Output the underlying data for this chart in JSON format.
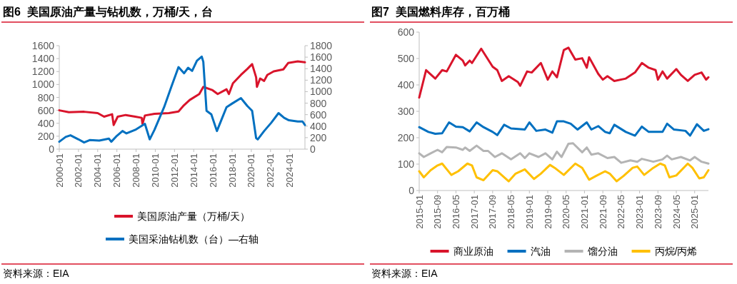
{
  "chart_data": [
    {
      "type": "line",
      "title": "图6  美国原油产量与钻机数，万桶/天，台",
      "annotations": [
        "资料来源：EIA"
      ],
      "legend": "bottom",
      "xlim": [
        "2000-01",
        "2025-08"
      ],
      "xticks": [
        "2000-01",
        "2002-01",
        "2004-01",
        "2006-01",
        "2008-01",
        "2010-01",
        "2012-01",
        "2014-01",
        "2016-01",
        "2018-01",
        "2020-01",
        "2022-01",
        "2024-01"
      ],
      "ylim": [
        0,
        1600
      ],
      "yticks": [
        0,
        200,
        400,
        600,
        800,
        1000,
        1200,
        1400,
        1600
      ],
      "y2lim": [
        0,
        1800
      ],
      "y2ticks": [
        0,
        200,
        400,
        600,
        800,
        1000,
        1200,
        1400,
        1600,
        1800
      ],
      "series": [
        {
          "name": "美国原油产量（万桶/天）",
          "color": "#d9142b",
          "x": [
            "2000-01",
            "2001-01",
            "2002-08",
            "2004-01",
            "2004-09",
            "2005-07",
            "2005-09",
            "2006-02",
            "2006-12",
            "2007-12",
            "2008-08",
            "2008-09",
            "2008-12",
            "2009-12",
            "2011-06",
            "2012-06",
            "2012-12",
            "2013-08",
            "2014-08",
            "2015-01",
            "2015-12",
            "2016-07",
            "2017-06",
            "2017-09",
            "2018-02",
            "2018-12",
            "2019-08",
            "2020-02",
            "2020-07",
            "2020-08",
            "2020-12",
            "2021-05",
            "2021-09",
            "2022-05",
            "2023-05",
            "2023-11",
            "2024-11",
            "2025-08"
          ],
          "values": [
            600,
            570,
            578,
            558,
            502,
            540,
            373,
            502,
            528,
            502,
            484,
            391,
            520,
            546,
            558,
            583,
            668,
            760,
            852,
            963,
            915,
            852,
            926,
            852,
            1018,
            1148,
            1240,
            1314,
            1111,
            963,
            1092,
            1055,
            1148,
            1203,
            1233,
            1332,
            1358,
            1343
          ]
        },
        {
          "name": "美国采油钻机数（台）—右轴",
          "color": "#0070c0",
          "axis": "y2",
          "x": [
            "2000-01",
            "2000-09",
            "2001-03",
            "2002-01",
            "2002-08",
            "2003-03",
            "2004-03",
            "2005-03",
            "2005-06",
            "2006-01",
            "2006-08",
            "2007-01",
            "2007-12",
            "2008-12",
            "2009-06",
            "2009-12",
            "2010-12",
            "2011-09",
            "2012-06",
            "2013-01",
            "2013-06",
            "2013-11",
            "2014-05",
            "2014-11",
            "2015-01",
            "2015-05",
            "2015-11",
            "2016-06",
            "2016-12",
            "2017-06",
            "2018-01",
            "2018-12",
            "2019-08",
            "2020-02",
            "2020-07",
            "2020-09",
            "2021-05",
            "2022-02",
            "2022-11",
            "2023-06",
            "2023-12",
            "2024-11",
            "2025-05",
            "2025-08"
          ],
          "values": [
            129,
            212,
            241,
            170,
            116,
            158,
            149,
            183,
            129,
            232,
            315,
            274,
            336,
            440,
            170,
            336,
            730,
            1083,
            1427,
            1320,
            1415,
            1361,
            1539,
            1610,
            1519,
            668,
            606,
            315,
            523,
            730,
            793,
            888,
            751,
            668,
            191,
            170,
            315,
            461,
            627,
            544,
            502,
            481,
            481,
            419
          ]
        }
      ]
    },
    {
      "type": "line",
      "title": "图7  美国燃料库存，百万桶",
      "annotations": [
        "资料来源：EIA"
      ],
      "legend": "bottom",
      "xlim": [
        "2015-01",
        "2025-07"
      ],
      "xticks": [
        "2015-01",
        "2015-09",
        "2016-05",
        "2017-01",
        "2017-09",
        "2018-05",
        "2019-01",
        "2019-09",
        "2020-05",
        "2021-01",
        "2021-09",
        "2022-05",
        "2023-01",
        "2023-09",
        "2024-05",
        "2025-01"
      ],
      "ylim": [
        0,
        600
      ],
      "yticks": [
        0,
        100,
        200,
        300,
        400,
        500,
        600
      ],
      "series": [
        {
          "name": "商业原油",
          "color": "#d9142b",
          "x": [
            "2015-01",
            "2015-04",
            "2015-08",
            "2015-11",
            "2016-01",
            "2016-05",
            "2016-08",
            "2016-09",
            "2016-11",
            "2016-12",
            "2017-02",
            "2017-04",
            "2017-09",
            "2017-11",
            "2018-01",
            "2018-04",
            "2018-08",
            "2018-09",
            "2018-12",
            "2019-02",
            "2019-06",
            "2019-09",
            "2019-11",
            "2020-01",
            "2020-04",
            "2020-06",
            "2020-09",
            "2020-12",
            "2021-02",
            "2021-03",
            "2021-07",
            "2021-09",
            "2021-11",
            "2022-02",
            "2022-07",
            "2022-11",
            "2023-02",
            "2023-05",
            "2023-08",
            "2023-09",
            "2023-11",
            "2024-01",
            "2024-05",
            "2024-07",
            "2024-10",
            "2025-01",
            "2025-04",
            "2025-06",
            "2025-07"
          ],
          "values": [
            352,
            456,
            424,
            456,
            451,
            514,
            492,
            474,
            492,
            483,
            510,
            537,
            469,
            456,
            415,
            433,
            411,
            397,
            451,
            447,
            483,
            420,
            451,
            429,
            532,
            541,
            496,
            501,
            465,
            505,
            442,
            420,
            433,
            415,
            424,
            447,
            483,
            465,
            456,
            420,
            451,
            424,
            460,
            438,
            415,
            438,
            447,
            420,
            429
          ]
        },
        {
          "name": "汽油",
          "color": "#0070c0",
          "x": [
            "2015-01",
            "2015-05",
            "2015-08",
            "2015-11",
            "2016-02",
            "2016-05",
            "2016-08",
            "2016-11",
            "2017-02",
            "2017-05",
            "2017-09",
            "2017-11",
            "2018-02",
            "2018-05",
            "2018-11",
            "2019-01",
            "2019-04",
            "2019-08",
            "2019-11",
            "2020-01",
            "2020-04",
            "2020-07",
            "2020-10",
            "2021-02",
            "2021-04",
            "2021-07",
            "2021-10",
            "2021-12",
            "2022-02",
            "2022-07",
            "2022-11",
            "2023-02",
            "2023-05",
            "2023-11",
            "2024-01",
            "2024-04",
            "2024-09",
            "2024-11",
            "2025-02",
            "2025-05",
            "2025-07"
          ],
          "values": [
            240,
            222,
            215,
            217,
            258,
            242,
            240,
            224,
            258,
            240,
            222,
            210,
            249,
            235,
            231,
            258,
            226,
            231,
            219,
            262,
            262,
            253,
            231,
            258,
            231,
            244,
            222,
            217,
            249,
            222,
            208,
            242,
            222,
            222,
            253,
            231,
            226,
            208,
            251,
            226,
            232
          ]
        },
        {
          "name": "馏分油",
          "color": "#b4b4b4",
          "x": [
            "2015-01",
            "2015-03",
            "2015-06",
            "2015-09",
            "2015-11",
            "2016-01",
            "2016-05",
            "2016-08",
            "2016-09",
            "2016-11",
            "2017-02",
            "2017-05",
            "2017-07",
            "2017-10",
            "2018-01",
            "2018-05",
            "2018-09",
            "2018-11",
            "2019-01",
            "2019-05",
            "2019-08",
            "2019-11",
            "2020-01",
            "2020-03",
            "2020-06",
            "2020-08",
            "2020-12",
            "2021-02",
            "2021-04",
            "2021-07",
            "2021-11",
            "2022-02",
            "2022-05",
            "2022-09",
            "2022-12",
            "2023-02",
            "2023-07",
            "2023-11",
            "2024-01",
            "2024-03",
            "2024-07",
            "2024-11",
            "2025-01",
            "2025-04",
            "2025-07"
          ],
          "values": [
            141,
            127,
            141,
            154,
            145,
            165,
            163,
            154,
            163,
            150,
            170,
            150,
            150,
            127,
            141,
            118,
            141,
            123,
            141,
            127,
            141,
            118,
            147,
            127,
            177,
            179,
            145,
            163,
            136,
            141,
            123,
            127,
            105,
            114,
            109,
            120,
            109,
            118,
            132,
            118,
            127,
            114,
            127,
            109,
            102
          ]
        },
        {
          "name": "丙烷/丙烯",
          "color": "#ffc000",
          "x": [
            "2015-01",
            "2015-03",
            "2015-06",
            "2015-09",
            "2015-11",
            "2016-03",
            "2016-06",
            "2016-10",
            "2016-12",
            "2017-02",
            "2017-05",
            "2017-09",
            "2017-11",
            "2018-04",
            "2018-07",
            "2018-11",
            "2019-03",
            "2019-06",
            "2019-10",
            "2019-12",
            "2020-04",
            "2020-09",
            "2020-12",
            "2021-03",
            "2021-06",
            "2021-10",
            "2021-12",
            "2022-03",
            "2022-06",
            "2022-10",
            "2022-12",
            "2023-03",
            "2023-07",
            "2023-10",
            "2023-12",
            "2024-02",
            "2024-05",
            "2024-10",
            "2024-12",
            "2025-03",
            "2025-05",
            "2025-07"
          ],
          "values": [
            73,
            50,
            77,
            95,
            102,
            59,
            73,
            102,
            95,
            50,
            39,
            77,
            73,
            35,
            64,
            80,
            44,
            64,
            97,
            86,
            59,
            102,
            86,
            41,
            55,
            73,
            64,
            35,
            55,
            86,
            91,
            59,
            86,
            102,
            95,
            50,
            57,
            102,
            86,
            46,
            50,
            77
          ]
        }
      ]
    }
  ]
}
